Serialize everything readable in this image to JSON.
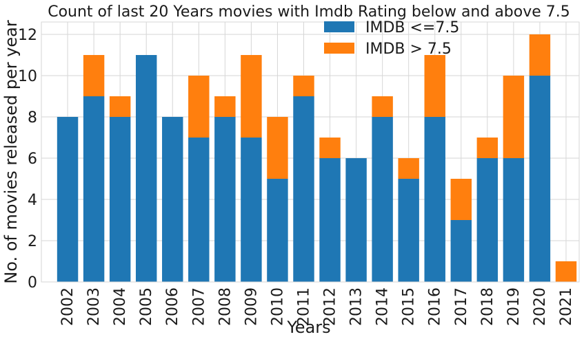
{
  "chart_data": {
    "type": "bar",
    "stacked": true,
    "title": "Count of last 20 Years movies with Imdb Rating below and above 7.5",
    "xlabel": "Years",
    "ylabel": "No. of movies released per year",
    "categories": [
      "2002",
      "2003",
      "2004",
      "2005",
      "2006",
      "2007",
      "2008",
      "2009",
      "2010",
      "2011",
      "2012",
      "2013",
      "2014",
      "2015",
      "2016",
      "2017",
      "2018",
      "2019",
      "2020",
      "2021"
    ],
    "series": [
      {
        "name": "IMDB <=7.5",
        "color": "#1f77b4",
        "values": [
          8,
          9,
          8,
          11,
          8,
          7,
          8,
          7,
          5,
          9,
          6,
          6,
          8,
          5,
          8,
          3,
          6,
          6,
          10,
          0
        ]
      },
      {
        "name": "IMDB > 7.5",
        "color": "#ff7f0e",
        "values": [
          0,
          2,
          1,
          0,
          0,
          3,
          1,
          4,
          3,
          1,
          1,
          0,
          1,
          1,
          3,
          2,
          1,
          4,
          2,
          1
        ]
      }
    ],
    "ylim": [
      0,
      12.6
    ],
    "yticks": [
      0,
      2,
      4,
      6,
      8,
      10,
      12
    ],
    "grid": true,
    "legend_position": "top-center"
  }
}
